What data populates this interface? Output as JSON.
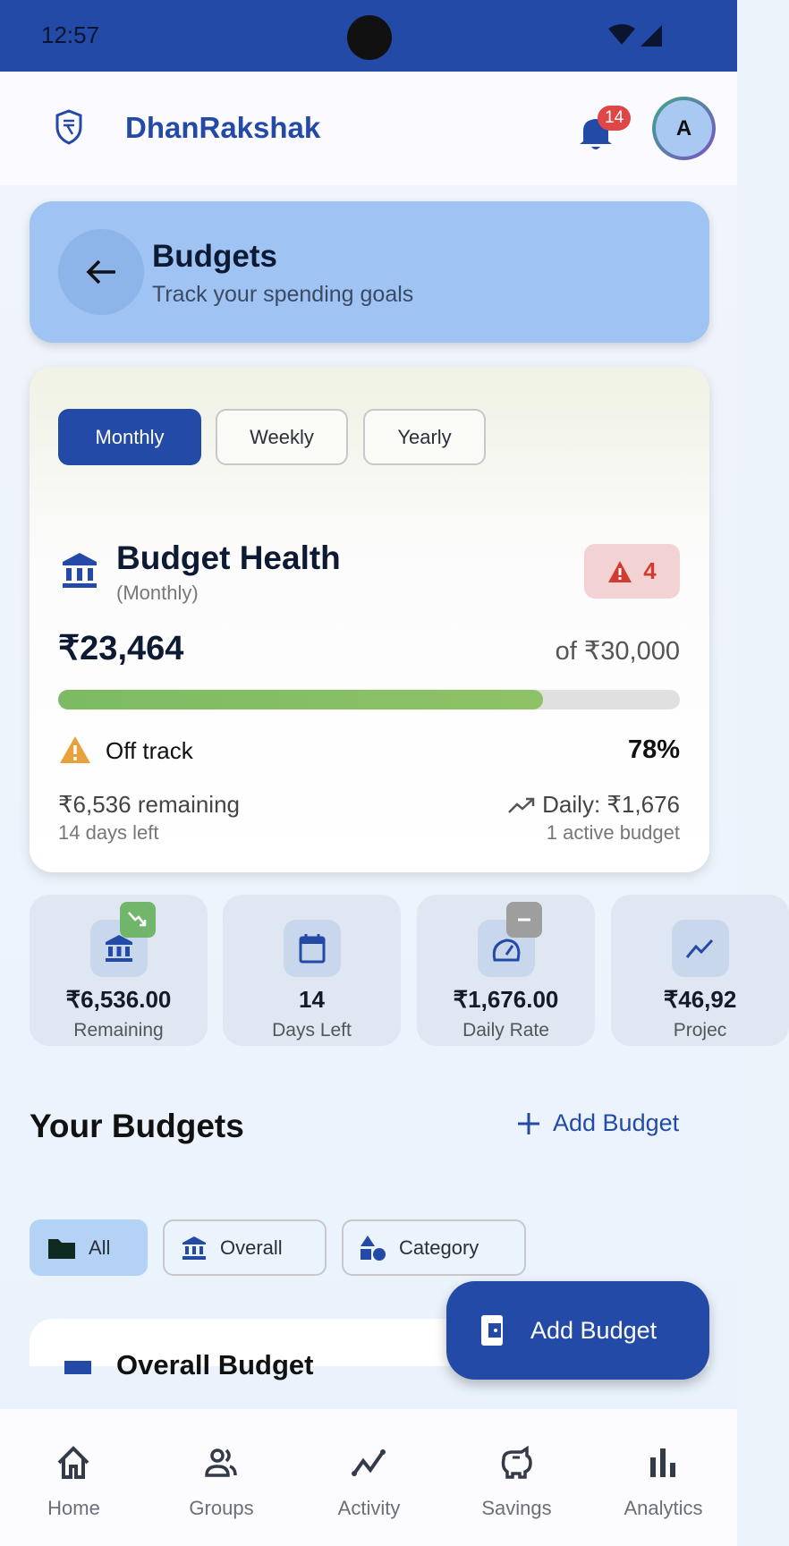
{
  "status_bar": {
    "time": "12:57"
  },
  "header": {
    "app_name": "DhanRakshak",
    "notification_count": "14",
    "avatar_initial": "A"
  },
  "page": {
    "title": "Budgets",
    "subtitle": "Track your spending goals"
  },
  "period_tabs": [
    {
      "label": "Monthly",
      "active": true
    },
    {
      "label": "Weekly",
      "active": false
    },
    {
      "label": "Yearly",
      "active": false
    }
  ],
  "health": {
    "title": "Budget Health",
    "period": "(Monthly)",
    "alert_count": "4",
    "spent": "₹23,464",
    "total": "of ₹30,000",
    "progress_percent": 78,
    "status": "Off track",
    "percent_label": "78%",
    "remaining": "₹6,536 remaining",
    "days_left": "14 days left",
    "daily": "Daily: ₹1,676",
    "active_budgets": "1 active budget"
  },
  "stats": [
    {
      "value": "₹6,536.00",
      "label": "Remaining"
    },
    {
      "value": "14",
      "label": "Days Left"
    },
    {
      "value": "₹1,676.00",
      "label": "Daily Rate"
    },
    {
      "value": "₹46,92",
      "label": "Projec"
    }
  ],
  "budgets": {
    "title": "Your Budgets",
    "add_link": "Add Budget",
    "filters": [
      {
        "label": "All",
        "active": true
      },
      {
        "label": "Overall"
      },
      {
        "label": "Category"
      }
    ],
    "first_card_title": "Overall Budget"
  },
  "fab": {
    "label": "Add Budget"
  },
  "nav": [
    {
      "label": "Home"
    },
    {
      "label": "Groups"
    },
    {
      "label": "Activity"
    },
    {
      "label": "Savings"
    },
    {
      "label": "Analytics"
    }
  ],
  "colors": {
    "primary": "#234aa6",
    "progress": "#8bc063",
    "warning": "#e8a23b",
    "danger": "#d23b32"
  }
}
